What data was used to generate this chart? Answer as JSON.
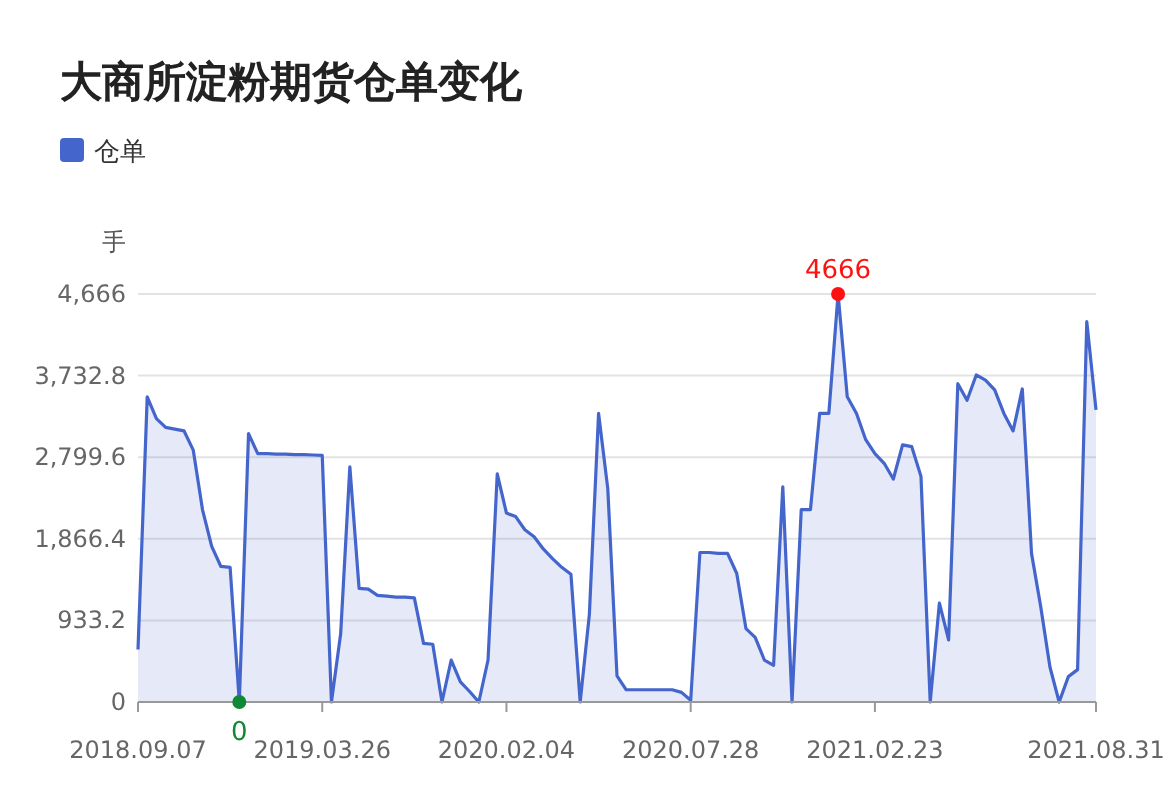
{
  "chart_data": {
    "type": "area",
    "title": "大商所淀粉期货仓单变化",
    "ylabel": "手",
    "legend": "top left",
    "grid": "y",
    "categories": [
      "2018.09.07",
      null,
      null,
      null,
      null,
      null,
      null,
      null,
      null,
      null,
      null,
      null,
      null,
      null,
      null,
      null,
      null,
      null,
      null,
      null,
      "2019.03.26",
      null,
      null,
      null,
      null,
      null,
      null,
      null,
      null,
      null,
      null,
      null,
      null,
      null,
      null,
      null,
      null,
      null,
      null,
      null,
      "2020.02.04",
      null,
      null,
      null,
      null,
      null,
      null,
      null,
      null,
      null,
      null,
      null,
      null,
      null,
      null,
      null,
      null,
      null,
      null,
      null,
      "2020.07.28",
      null,
      null,
      null,
      null,
      null,
      null,
      null,
      null,
      null,
      null,
      null,
      null,
      null,
      null,
      null,
      null,
      null,
      null,
      null,
      "2021.02.23",
      null,
      null,
      null,
      null,
      null,
      null,
      null,
      null,
      null,
      null,
      null,
      null,
      null,
      null,
      null,
      null,
      null,
      null,
      null,
      null,
      null,
      null,
      null,
      "2021.08.31"
    ],
    "ylim": [
      0,
      4666
    ],
    "yticks": [
      {
        "value": 0,
        "label": "0"
      },
      {
        "value": 933.2,
        "label": "933.2"
      },
      {
        "value": 1866.4,
        "label": "1,866.4"
      },
      {
        "value": 2799.6,
        "label": "2,799.6"
      },
      {
        "value": 3732.8,
        "label": "3,732.8"
      },
      {
        "value": 4666,
        "label": "4,666"
      }
    ],
    "annotations": [
      {
        "text": "4666",
        "y": 4666
      },
      {
        "text": "0",
        "y": 0
      }
    ],
    "series": [
      {
        "name": "仓单",
        "color": "#4466cc",
        "values": [
          600,
          3490,
          3240,
          3140,
          3120,
          3100,
          2880,
          2200,
          1780,
          1550,
          1540,
          0,
          3070,
          2840,
          2840,
          2835,
          2835,
          2830,
          2830,
          2825,
          2820,
          0,
          780,
          2690,
          1300,
          1290,
          1220,
          1210,
          1200,
          1200,
          1190,
          670,
          660,
          0,
          480,
          230,
          120,
          0,
          480,
          2610,
          2160,
          2120,
          1970,
          1890,
          1750,
          1640,
          1540,
          1460,
          0,
          1000,
          3300,
          2440,
          300,
          140,
          140,
          140,
          140,
          140,
          140,
          110,
          20,
          1710,
          1710,
          1700,
          1700,
          1470,
          840,
          740,
          480,
          420,
          2460,
          0,
          2200,
          2200,
          3300,
          3300,
          4666,
          3490,
          3300,
          3000,
          2840,
          2730,
          2550,
          2940,
          2920,
          2580,
          0,
          1130,
          710,
          3640,
          3450,
          3740,
          3680,
          3570,
          3300,
          3100,
          3580,
          1700,
          1090,
          400,
          0,
          290,
          370,
          4350,
          3340
        ]
      }
    ]
  }
}
